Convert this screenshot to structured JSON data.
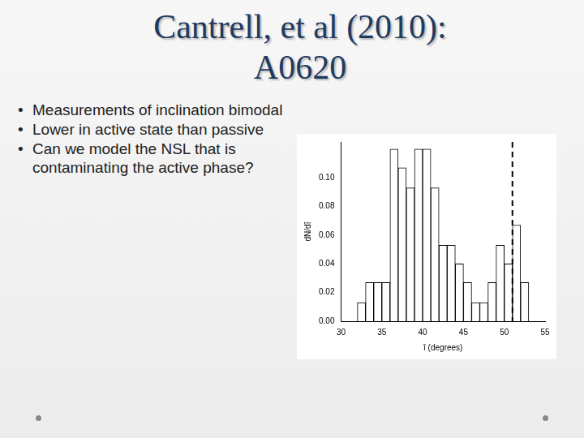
{
  "slide": {
    "title": [
      "Cantrell, et al (2010):",
      "A0620"
    ],
    "bullets": [
      "Measurements of inclination bimodal",
      "Lower in active state than passive",
      "Can we model the NSL that is contaminating the active phase?"
    ]
  },
  "chart_data": {
    "type": "histogram",
    "bins": [
      32,
      33,
      34,
      35,
      36,
      37,
      38,
      39,
      40,
      41,
      42,
      43,
      44,
      45,
      46,
      47,
      48,
      49,
      50,
      51,
      52,
      53
    ],
    "values": [
      0.013,
      0.027,
      0.027,
      0.027,
      0.12,
      0.107,
      0.093,
      0.12,
      0.12,
      0.093,
      0.053,
      0.053,
      0.04,
      0.027,
      0.013,
      0.013,
      0.027,
      0.053,
      0.04,
      0.067,
      0.027
    ],
    "color": "#ffffff",
    "x_label": "î (degrees)",
    "y_label": "dN/dî",
    "xlim": [
      30,
      55
    ],
    "xticks": [
      30,
      35,
      40,
      45,
      50,
      55
    ],
    "ylim": [
      0,
      0.125
    ],
    "yticks": [
      {
        "value": 0,
        "label": "0.00"
      },
      {
        "value": 0.02,
        "label": "0.02"
      },
      {
        "value": 0.04,
        "label": "0.04"
      },
      {
        "value": 0.06,
        "label": "0.06"
      },
      {
        "value": 0.08,
        "label": "0.08"
      },
      {
        "value": 0.1,
        "label": "0.10"
      }
    ],
    "reference_line": 51,
    "grid": false
  }
}
